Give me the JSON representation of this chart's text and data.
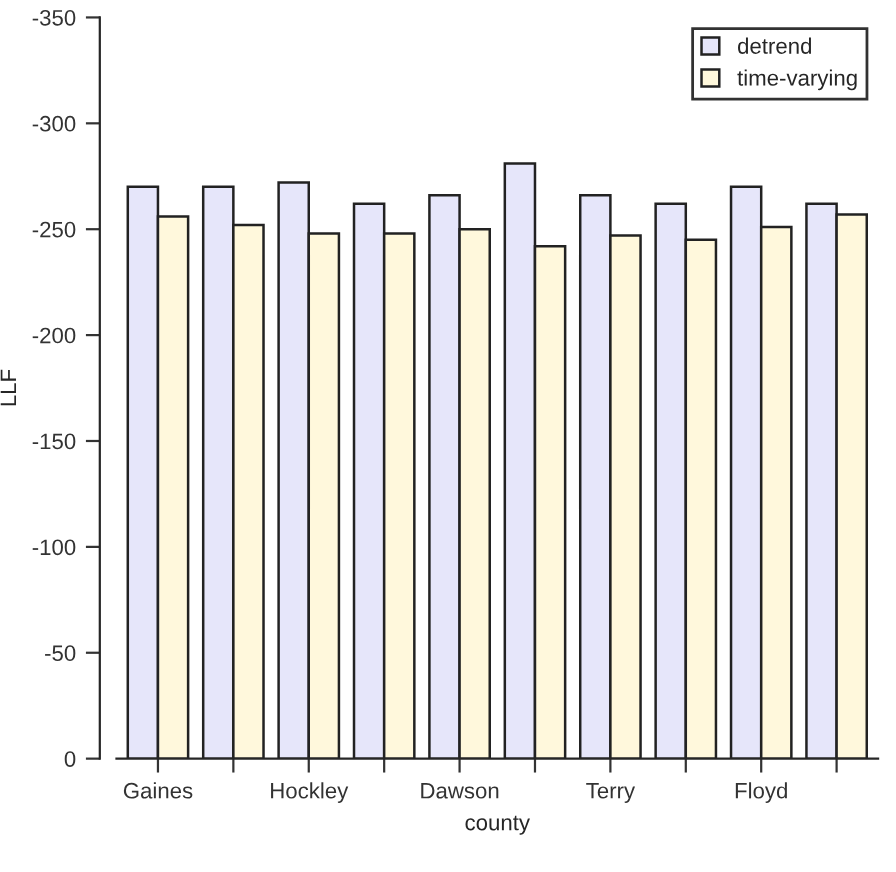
{
  "chart_data": {
    "type": "bar",
    "xlabel": "county",
    "ylabel": "LLF",
    "categories": [
      "Gaines",
      null,
      "Hockley",
      null,
      "Dawson",
      null,
      "Terry",
      null,
      "Floyd",
      null
    ],
    "series": [
      {
        "name": "detrend",
        "color": "#e6e6fa",
        "values": [
          -270,
          -270,
          -272,
          -262,
          -266,
          -281,
          -266,
          -262,
          -270,
          -262
        ]
      },
      {
        "name": "time-varying",
        "color": "#fff8dc",
        "values": [
          -256,
          -252,
          -248,
          -248,
          -250,
          -242,
          -247,
          -245,
          -251,
          -257
        ]
      }
    ],
    "ylim": [
      0,
      -350
    ],
    "yticks": [
      0,
      -50,
      -100,
      -150,
      -200,
      -250,
      -300,
      -350
    ],
    "legend": "top right",
    "grid": false
  }
}
